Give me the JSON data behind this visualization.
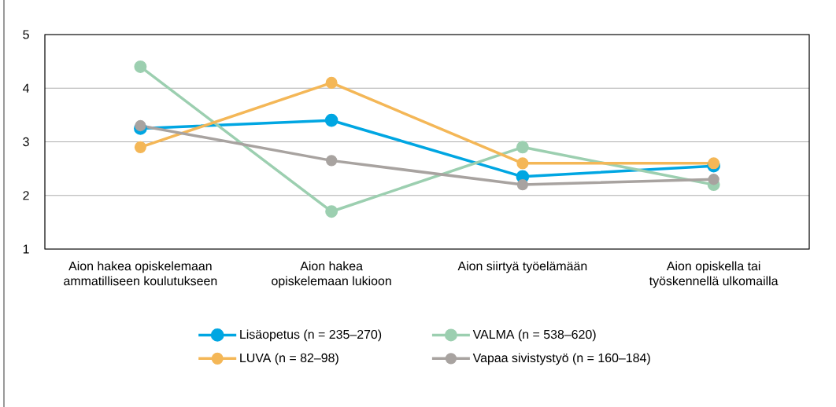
{
  "chart_data": {
    "type": "line",
    "categories": [
      "Aion hakea opiskelemaan ammatilliseen koulutukseen",
      "Aion hakea opiskelemaan lukioon",
      "Aion siirtyä työelämään",
      "Aion opiskella tai työskennellä ulkomailla"
    ],
    "series": [
      {
        "name": "Lisäopetus (n = 235–270)",
        "color": "#00a6e2",
        "values": [
          3.25,
          3.4,
          2.35,
          2.55
        ]
      },
      {
        "name": "VALMA (n = 538–620)",
        "color": "#9ccfb0",
        "values": [
          4.4,
          1.7,
          2.9,
          2.2
        ]
      },
      {
        "name": "LUVA (n = 82–98)",
        "color": "#f4b757",
        "values": [
          2.9,
          4.1,
          2.6,
          2.6
        ]
      },
      {
        "name": "Vapaa sivistystyö (n = 160–184)",
        "color": "#a8a3a0",
        "values": [
          3.3,
          2.65,
          2.2,
          2.3
        ]
      }
    ],
    "ylim": [
      1,
      5
    ],
    "yticks": [
      1,
      2,
      3,
      4,
      5
    ],
    "grid": "y",
    "legend": "bottom",
    "marker": "circle",
    "line_style": "solid"
  }
}
